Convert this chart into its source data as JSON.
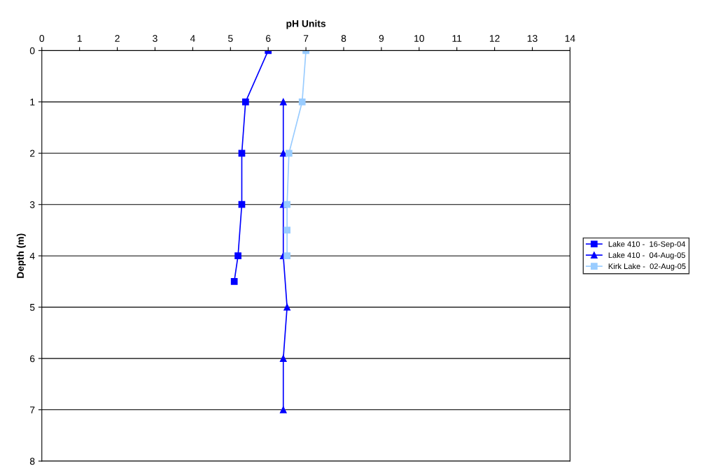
{
  "chart_data": {
    "type": "line",
    "xlabel": "pH Units",
    "ylabel": "Depth (m)",
    "xlim": [
      0,
      14
    ],
    "xticks": [
      0,
      1,
      2,
      3,
      4,
      5,
      6,
      7,
      8,
      9,
      10,
      11,
      12,
      13,
      14
    ],
    "ylim": [
      8,
      0
    ],
    "yticks": [
      0,
      1,
      2,
      3,
      4,
      5,
      6,
      7,
      8
    ],
    "grid": "y",
    "legend": "right",
    "series": [
      {
        "name": "Lake 410 -  16-Sep-04",
        "color": "#0000ff",
        "marker": "square",
        "x": [
          6.0,
          5.4,
          5.3,
          5.3,
          5.2,
          5.1
        ],
        "values": [
          0,
          1,
          2,
          3,
          4,
          4.5
        ]
      },
      {
        "name": "Lake 410 -  04-Aug-05",
        "color": "#0000ff",
        "marker": "triangle",
        "x": [
          6.4,
          6.4,
          6.4,
          6.4,
          6.5,
          6.4,
          6.4
        ],
        "values": [
          1,
          2,
          3,
          4,
          5,
          6,
          7
        ]
      },
      {
        "name": "Kirk Lake -  02-Aug-05",
        "color": "#99ccff",
        "marker": "square",
        "x": [
          7.0,
          6.9,
          6.55,
          6.5,
          6.5,
          6.5
        ],
        "values": [
          0,
          1,
          2,
          3,
          3.5,
          4
        ]
      }
    ]
  }
}
